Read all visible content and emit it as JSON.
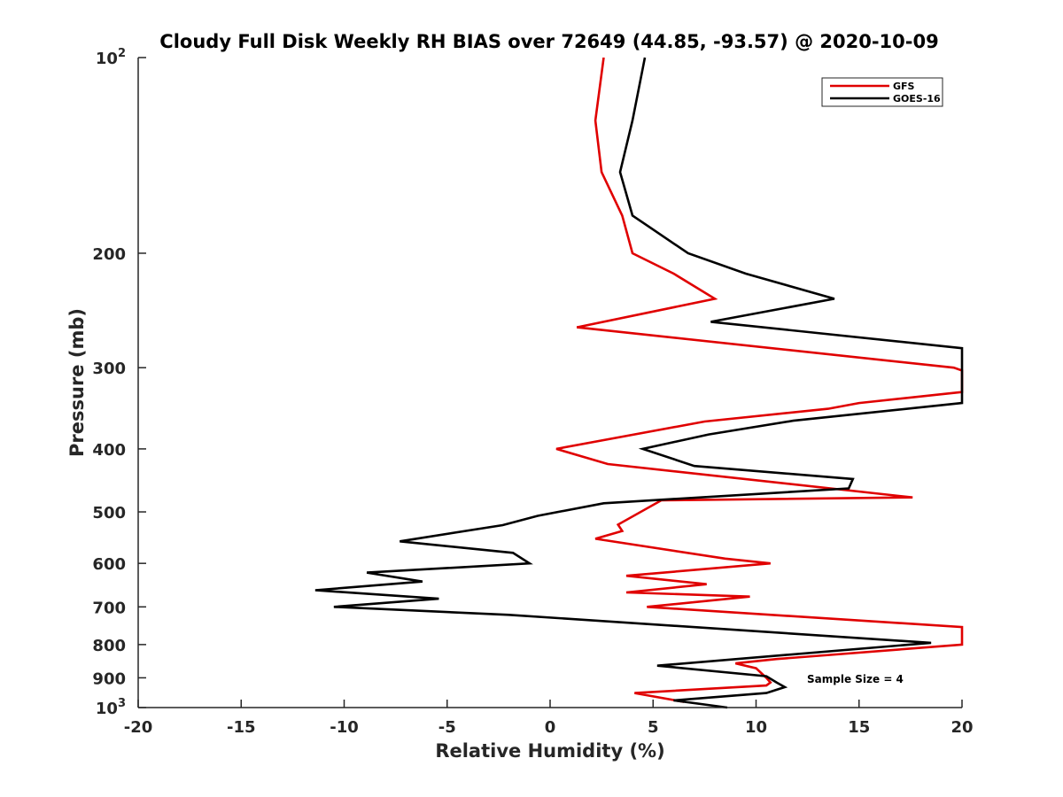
{
  "chart_data": {
    "type": "line",
    "title": "Cloudy Full Disk Weekly RH BIAS over 72649 (44.85, -93.57) @ 2020-10-09",
    "xlabel": "Relative Humidity (%)",
    "ylabel": "Pressure (mb)",
    "xlim": [
      -20,
      20
    ],
    "ylim": [
      100,
      1000
    ],
    "y_scale": "log",
    "y_reversed": true,
    "grid": false,
    "legend_position": "top-right",
    "x_ticks": [
      "-20",
      "-15",
      "-10",
      "-5",
      "0",
      "5",
      "10",
      "15",
      "20"
    ],
    "x_tick_values": [
      -20,
      -15,
      -10,
      -5,
      0,
      5,
      10,
      15,
      20
    ],
    "y_ticks": [
      {
        "value": 100,
        "base": "10",
        "exp": "2"
      },
      {
        "value": 200,
        "base": "200",
        "exp": ""
      },
      {
        "value": 300,
        "base": "300",
        "exp": ""
      },
      {
        "value": 400,
        "base": "400",
        "exp": ""
      },
      {
        "value": 500,
        "base": "500",
        "exp": ""
      },
      {
        "value": 600,
        "base": "600",
        "exp": ""
      },
      {
        "value": 700,
        "base": "700",
        "exp": ""
      },
      {
        "value": 800,
        "base": "800",
        "exp": ""
      },
      {
        "value": 900,
        "base": "900",
        "exp": ""
      },
      {
        "value": 1000,
        "base": "10",
        "exp": "3"
      }
    ],
    "annotation": "Sample Size = 4",
    "series": [
      {
        "name": "GFS",
        "color": "#e00000",
        "points": [
          [
            2.6,
            100
          ],
          [
            2.2,
            125
          ],
          [
            2.5,
            150
          ],
          [
            3.5,
            175
          ],
          [
            4.0,
            200
          ],
          [
            6.0,
            215
          ],
          [
            8.0,
            235
          ],
          [
            1.3,
            260
          ],
          [
            19.6,
            300
          ],
          [
            20.0,
            303
          ],
          [
            20.0,
            327
          ],
          [
            15.0,
            340
          ],
          [
            13.5,
            347
          ],
          [
            7.5,
            363
          ],
          [
            0.3,
            400
          ],
          [
            2.8,
            422
          ],
          [
            17.6,
            475
          ],
          [
            5.4,
            480
          ],
          [
            3.3,
            523
          ],
          [
            3.5,
            535
          ],
          [
            2.2,
            550
          ],
          [
            8.5,
            590
          ],
          [
            10.7,
            600
          ],
          [
            3.7,
            627
          ],
          [
            7.6,
            646
          ],
          [
            3.7,
            665
          ],
          [
            9.7,
            675
          ],
          [
            4.7,
            700
          ],
          [
            20.0,
            752
          ],
          [
            20.0,
            800
          ],
          [
            11.0,
            842
          ],
          [
            9.0,
            855
          ],
          [
            10.0,
            870
          ],
          [
            10.5,
            900
          ],
          [
            10.7,
            915
          ],
          [
            10.5,
            925
          ],
          [
            4.1,
            950
          ],
          [
            6.5,
            980
          ]
        ]
      },
      {
        "name": "GOES-16",
        "color": "#000000",
        "points": [
          [
            4.6,
            100
          ],
          [
            4.0,
            125
          ],
          [
            3.4,
            150
          ],
          [
            4.0,
            175
          ],
          [
            6.7,
            200
          ],
          [
            9.5,
            215
          ],
          [
            13.8,
            235
          ],
          [
            7.8,
            255
          ],
          [
            20.0,
            280
          ],
          [
            20.0,
            300
          ],
          [
            20.0,
            327
          ],
          [
            20.0,
            340
          ],
          [
            11.8,
            362
          ],
          [
            7.7,
            380
          ],
          [
            4.5,
            400
          ],
          [
            7.0,
            425
          ],
          [
            14.7,
            445
          ],
          [
            14.5,
            460
          ],
          [
            2.6,
            485
          ],
          [
            -0.6,
            507
          ],
          [
            -2.3,
            524
          ],
          [
            -7.3,
            555
          ],
          [
            -1.8,
            578
          ],
          [
            -1.0,
            600
          ],
          [
            -8.9,
            620
          ],
          [
            -6.2,
            640
          ],
          [
            -11.4,
            660
          ],
          [
            -5.4,
            680
          ],
          [
            -10.5,
            700
          ],
          [
            -2.0,
            720
          ],
          [
            18.5,
            795
          ],
          [
            5.2,
            862
          ],
          [
            10.5,
            895
          ],
          [
            11.0,
            915
          ],
          [
            11.4,
            930
          ],
          [
            10.5,
            950
          ],
          [
            6.0,
            975
          ],
          [
            8.6,
            1000
          ]
        ]
      }
    ]
  }
}
